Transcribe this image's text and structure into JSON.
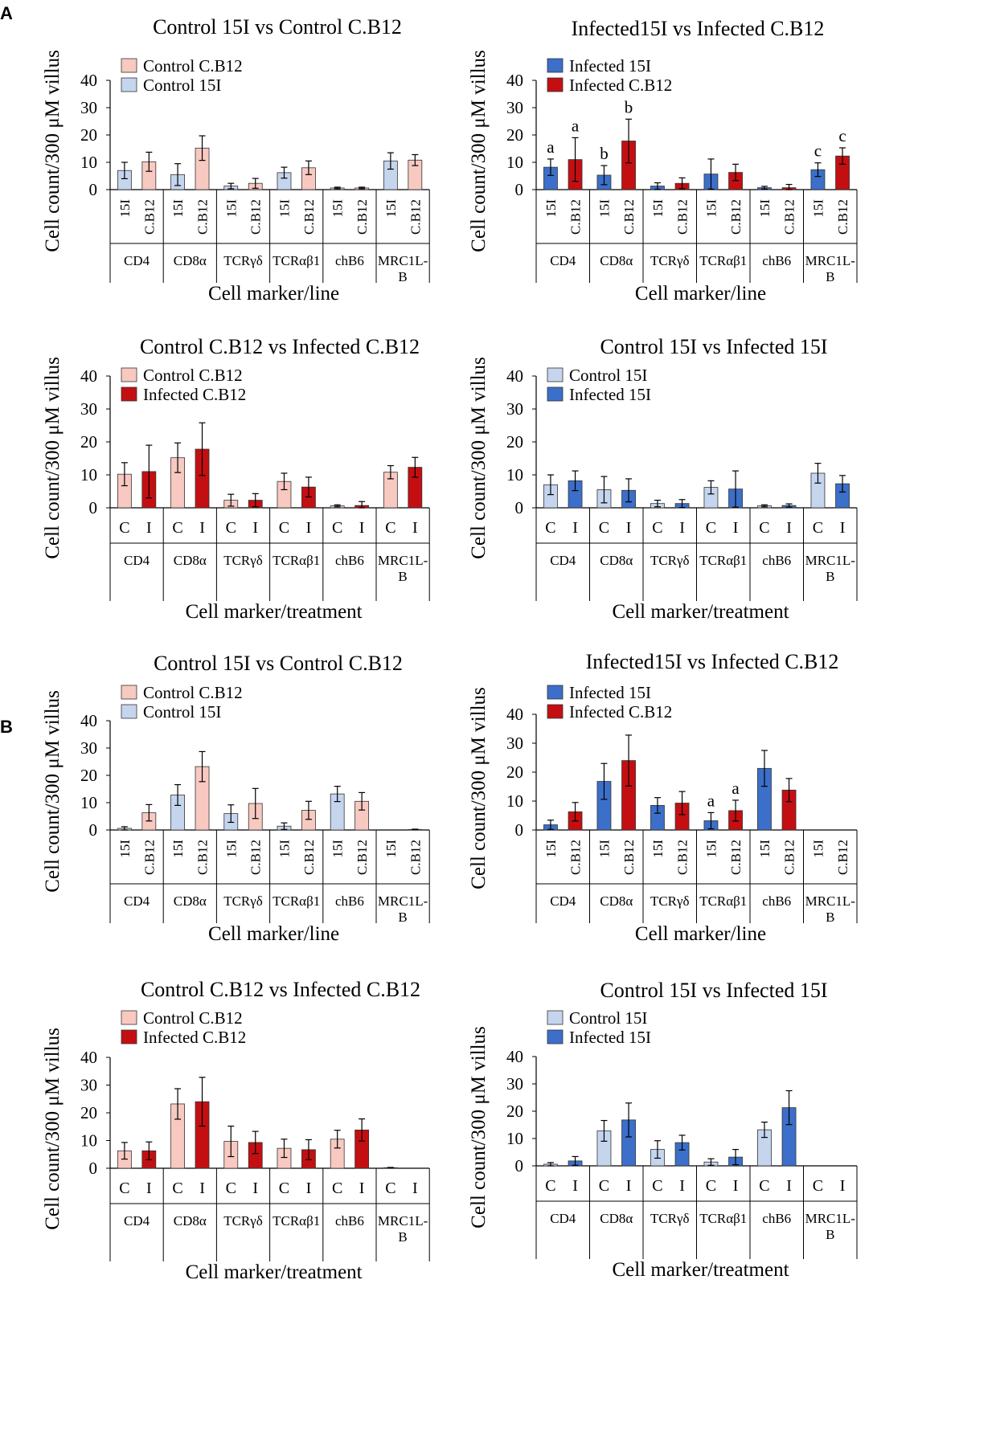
{
  "colors": {
    "control_cb12": "#f8c9c1",
    "control_15i": "#c5d5ee",
    "infected_15i": "#3c6fc9",
    "infected_cb12": "#c40f12",
    "axis": "#000000"
  },
  "panel_labels": [
    "A",
    "B"
  ],
  "chart_data": [
    {
      "type": "bar",
      "panel": "A",
      "title": "Control 15I vs Control C.B12",
      "ylabel": "Cell count/300 μM villus",
      "xlabel": "Cell marker/line",
      "ylim": [
        0,
        40
      ],
      "yticks": [
        "0",
        "10",
        "20",
        "30",
        "40"
      ],
      "legend_position": "top-left",
      "groups": [
        "CD4",
        "CD8α",
        "TCRγδ",
        "TCRαβ1",
        "chB6",
        [
          "MRC1L-",
          "B"
        ]
      ],
      "bar_labels": [
        "15I",
        "C.B12"
      ],
      "bar_label_rotated": true,
      "legend": [
        {
          "name": "Control C.B12",
          "color": "control_cb12"
        },
        {
          "name": "Control 15I",
          "color": "control_15i"
        }
      ],
      "series": [
        {
          "name": "Control 15I",
          "color": "control_15i",
          "values": [
            7,
            5.5,
            1.3,
            6.2,
            0.6,
            10.5
          ],
          "errors": [
            3,
            4,
            1,
            2,
            0.3,
            3
          ]
        },
        {
          "name": "Control C.B12",
          "color": "control_cb12",
          "values": [
            10.2,
            15.2,
            2.3,
            8,
            0.6,
            10.8
          ],
          "errors": [
            3.5,
            4.5,
            1.8,
            2.5,
            0.3,
            2
          ]
        }
      ],
      "annotations": []
    },
    {
      "type": "bar",
      "panel": "A",
      "title": "Infected15I vs Infected C.B12",
      "ylabel": "Cell count/300 μM villus",
      "xlabel": "Cell marker/line",
      "ylim": [
        0,
        40
      ],
      "yticks": [
        "0",
        "10",
        "20",
        "30",
        "40"
      ],
      "legend_position": "top-left",
      "groups": [
        "CD4",
        "CD8α",
        "TCRγδ",
        "TCRαβ1",
        "chB6",
        [
          "MRC1L-",
          "B"
        ]
      ],
      "bar_labels": [
        "15I",
        "C.B12"
      ],
      "bar_label_rotated": true,
      "legend": [
        {
          "name": "Infected 15I",
          "color": "infected_15i"
        },
        {
          "name": "Infected C.B12",
          "color": "infected_cb12"
        }
      ],
      "series": [
        {
          "name": "Infected 15I",
          "color": "infected_15i",
          "values": [
            8.2,
            5.3,
            1.3,
            5.7,
            0.7,
            7.3
          ],
          "errors": [
            3,
            3.5,
            1.2,
            5.5,
            0.5,
            2.5
          ]
        },
        {
          "name": "Infected C.B12",
          "color": "infected_cb12",
          "values": [
            11,
            17.8,
            2.3,
            6.3,
            0.7,
            12.3
          ],
          "errors": [
            8,
            8,
            2,
            3,
            1.2,
            3
          ]
        }
      ],
      "annotations": [
        {
          "group": 0,
          "series": 0,
          "text": "a"
        },
        {
          "group": 0,
          "series": 1,
          "text": "a"
        },
        {
          "group": 1,
          "series": 0,
          "text": "b"
        },
        {
          "group": 1,
          "series": 1,
          "text": "b"
        },
        {
          "group": 5,
          "series": 0,
          "text": "c"
        },
        {
          "group": 5,
          "series": 1,
          "text": "c"
        }
      ]
    },
    {
      "type": "bar",
      "panel": "A",
      "title": "Control C.B12 vs Infected C.B12",
      "ylabel": "Cell count/300 μM villus",
      "xlabel": "Cell marker/treatment",
      "ylim": [
        0,
        40
      ],
      "yticks": [
        "0",
        "10",
        "20",
        "30",
        "40"
      ],
      "legend_position": "top-left",
      "groups": [
        "CD4",
        "CD8α",
        "TCRγδ",
        "TCRαβ1",
        "chB6",
        [
          "MRC1L-",
          "B"
        ]
      ],
      "bar_labels": [
        "C",
        "I"
      ],
      "bar_label_rotated": false,
      "legend": [
        {
          "name": "Control C.B12",
          "color": "control_cb12"
        },
        {
          "name": "Infected C.B12",
          "color": "infected_cb12"
        }
      ],
      "series": [
        {
          "name": "Control C.B12",
          "color": "control_cb12",
          "values": [
            10.2,
            15.2,
            2.3,
            8,
            0.6,
            10.8
          ],
          "errors": [
            3.5,
            4.5,
            1.8,
            2.5,
            0.3,
            2
          ]
        },
        {
          "name": "Infected C.B12",
          "color": "infected_cb12",
          "values": [
            11,
            17.8,
            2.3,
            6.3,
            0.7,
            12.3
          ],
          "errors": [
            8,
            8,
            2,
            3,
            1.2,
            3
          ]
        }
      ],
      "annotations": []
    },
    {
      "type": "bar",
      "panel": "A",
      "title": "Control 15I vs Infected 15I",
      "ylabel": "Cell count/300 μM villus",
      "xlabel": "Cell marker/treatment",
      "ylim": [
        0,
        40
      ],
      "yticks": [
        "0",
        "10",
        "20",
        "30",
        "40"
      ],
      "legend_position": "top-left",
      "groups": [
        "CD4",
        "CD8α",
        "TCRγδ",
        "TCRαβ1",
        "chB6",
        [
          "MRC1L-",
          "B"
        ]
      ],
      "bar_labels": [
        "C",
        "I"
      ],
      "bar_label_rotated": false,
      "legend": [
        {
          "name": "Control 15I",
          "color": "control_15i"
        },
        {
          "name": "Infected 15I",
          "color": "infected_15i"
        }
      ],
      "series": [
        {
          "name": "Control 15I",
          "color": "control_15i",
          "values": [
            7,
            5.5,
            1.3,
            6.2,
            0.6,
            10.5
          ],
          "errors": [
            3,
            4,
            1,
            2,
            0.3,
            3
          ]
        },
        {
          "name": "Infected 15I",
          "color": "infected_15i",
          "values": [
            8.2,
            5.3,
            1.3,
            5.7,
            0.7,
            7.3
          ],
          "errors": [
            3,
            3.5,
            1.2,
            5.5,
            0.5,
            2.5
          ]
        }
      ],
      "annotations": []
    },
    {
      "type": "bar",
      "panel": "B",
      "title": "Control 15I vs Control C.B12",
      "ylabel": "Cell count/300 μM villus",
      "xlabel": "Cell marker/line",
      "ylim": [
        0,
        40
      ],
      "yticks": [
        "0",
        "10",
        "20",
        "30",
        "40"
      ],
      "legend_position": "top-left",
      "groups": [
        "CD4",
        "CD8α",
        "TCRγδ",
        "TCRαβ1",
        "chB6",
        [
          "MRC1L-",
          "B"
        ]
      ],
      "bar_labels": [
        "15I",
        "C.B12"
      ],
      "bar_label_rotated": true,
      "legend": [
        {
          "name": "Control C.B12",
          "color": "control_cb12"
        },
        {
          "name": "Control 15I",
          "color": "control_15i"
        }
      ],
      "series": [
        {
          "name": "Control 15I",
          "color": "control_15i",
          "values": [
            0.6,
            12.8,
            6,
            1.4,
            13.2,
            0
          ],
          "errors": [
            0.6,
            3.8,
            3.2,
            1.2,
            2.8,
            0
          ]
        },
        {
          "name": "Control C.B12",
          "color": "control_cb12",
          "values": [
            6.3,
            23.2,
            9.7,
            7.2,
            10.5,
            0.2
          ],
          "errors": [
            3,
            5.5,
            5.5,
            3.3,
            3.2,
            0.1
          ]
        }
      ],
      "annotations": []
    },
    {
      "type": "bar",
      "panel": "B",
      "title": "Infected15I vs Infected C.B12",
      "ylabel": "Cell count/300 μM villus",
      "xlabel": "Cell marker/line",
      "ylim": [
        0,
        40
      ],
      "yticks": [
        "0",
        "10",
        "20",
        "30",
        "40"
      ],
      "legend_position": "top-left",
      "groups": [
        "CD4",
        "CD8α",
        "TCRγδ",
        "TCRαβ1",
        "chB6",
        [
          "MRC1L-",
          "B"
        ]
      ],
      "bar_labels": [
        "15I",
        "C.B12"
      ],
      "bar_label_rotated": true,
      "legend": [
        {
          "name": "Infected 15I",
          "color": "infected_15i"
        },
        {
          "name": "Infected C.B12",
          "color": "infected_cb12"
        }
      ],
      "series": [
        {
          "name": "Infected 15I",
          "color": "infected_15i",
          "values": [
            1.8,
            16.8,
            8.5,
            3.2,
            21.3,
            0
          ],
          "errors": [
            1.6,
            6.2,
            2.7,
            2.8,
            6.2,
            0
          ]
        },
        {
          "name": "Infected C.B12",
          "color": "infected_cb12",
          "values": [
            6.3,
            24,
            9.3,
            6.7,
            13.8,
            0
          ],
          "errors": [
            3.2,
            8.8,
            4,
            3.6,
            4,
            0
          ]
        }
      ],
      "annotations": [
        {
          "group": 3,
          "series": 0,
          "text": "a"
        },
        {
          "group": 3,
          "series": 1,
          "text": "a"
        }
      ]
    },
    {
      "type": "bar",
      "panel": "B",
      "title": "Control C.B12 vs Infected C.B12",
      "ylabel": "Cell count/300 μM villus",
      "xlabel": "Cell marker/treatment",
      "ylim": [
        0,
        40
      ],
      "yticks": [
        "0",
        "10",
        "20",
        "30",
        "40"
      ],
      "legend_position": "top-left",
      "groups": [
        "CD4",
        "CD8α",
        "TCRγδ",
        "TCRαβ1",
        "chB6",
        [
          "MRC1L-",
          "B"
        ]
      ],
      "bar_labels": [
        "C",
        "I"
      ],
      "bar_label_rotated": false,
      "legend": [
        {
          "name": "Control C.B12",
          "color": "control_cb12"
        },
        {
          "name": "Infected C.B12",
          "color": "infected_cb12"
        }
      ],
      "series": [
        {
          "name": "Control C.B12",
          "color": "control_cb12",
          "values": [
            6.3,
            23.2,
            9.7,
            7.2,
            10.5,
            0.2
          ],
          "errors": [
            3,
            5.5,
            5.5,
            3.3,
            3.2,
            0.1
          ]
        },
        {
          "name": "Infected C.B12",
          "color": "infected_cb12",
          "values": [
            6.3,
            24,
            9.3,
            6.7,
            13.8,
            0
          ],
          "errors": [
            3.2,
            8.8,
            4,
            3.6,
            4,
            0
          ]
        }
      ],
      "annotations": []
    },
    {
      "type": "bar",
      "panel": "B",
      "title": "Control 15I vs Infected 15I",
      "ylabel": "Cell count/300 μM villus",
      "xlabel": "Cell marker/treatment",
      "ylim": [
        0,
        40
      ],
      "yticks": [
        "0",
        "10",
        "20",
        "30",
        "40"
      ],
      "legend_position": "top-left",
      "groups": [
        "CD4",
        "CD8α",
        "TCRγδ",
        "TCRαβ1",
        "chB6",
        [
          "MRC1L-",
          "B"
        ]
      ],
      "bar_labels": [
        "C",
        "I"
      ],
      "bar_label_rotated": false,
      "legend": [
        {
          "name": "Control 15I",
          "color": "control_15i"
        },
        {
          "name": "Infected 15I",
          "color": "infected_15i"
        }
      ],
      "series": [
        {
          "name": "Control 15I",
          "color": "control_15i",
          "values": [
            0.6,
            12.8,
            6,
            1.4,
            13.2,
            0
          ],
          "errors": [
            0.6,
            3.8,
            3.2,
            1.2,
            2.8,
            0
          ]
        },
        {
          "name": "Infected 15I",
          "color": "infected_15i",
          "values": [
            1.8,
            16.8,
            8.5,
            3.2,
            21.3,
            0
          ],
          "errors": [
            1.6,
            6.2,
            2.7,
            2.8,
            6.2,
            0
          ]
        }
      ],
      "annotations": []
    }
  ]
}
